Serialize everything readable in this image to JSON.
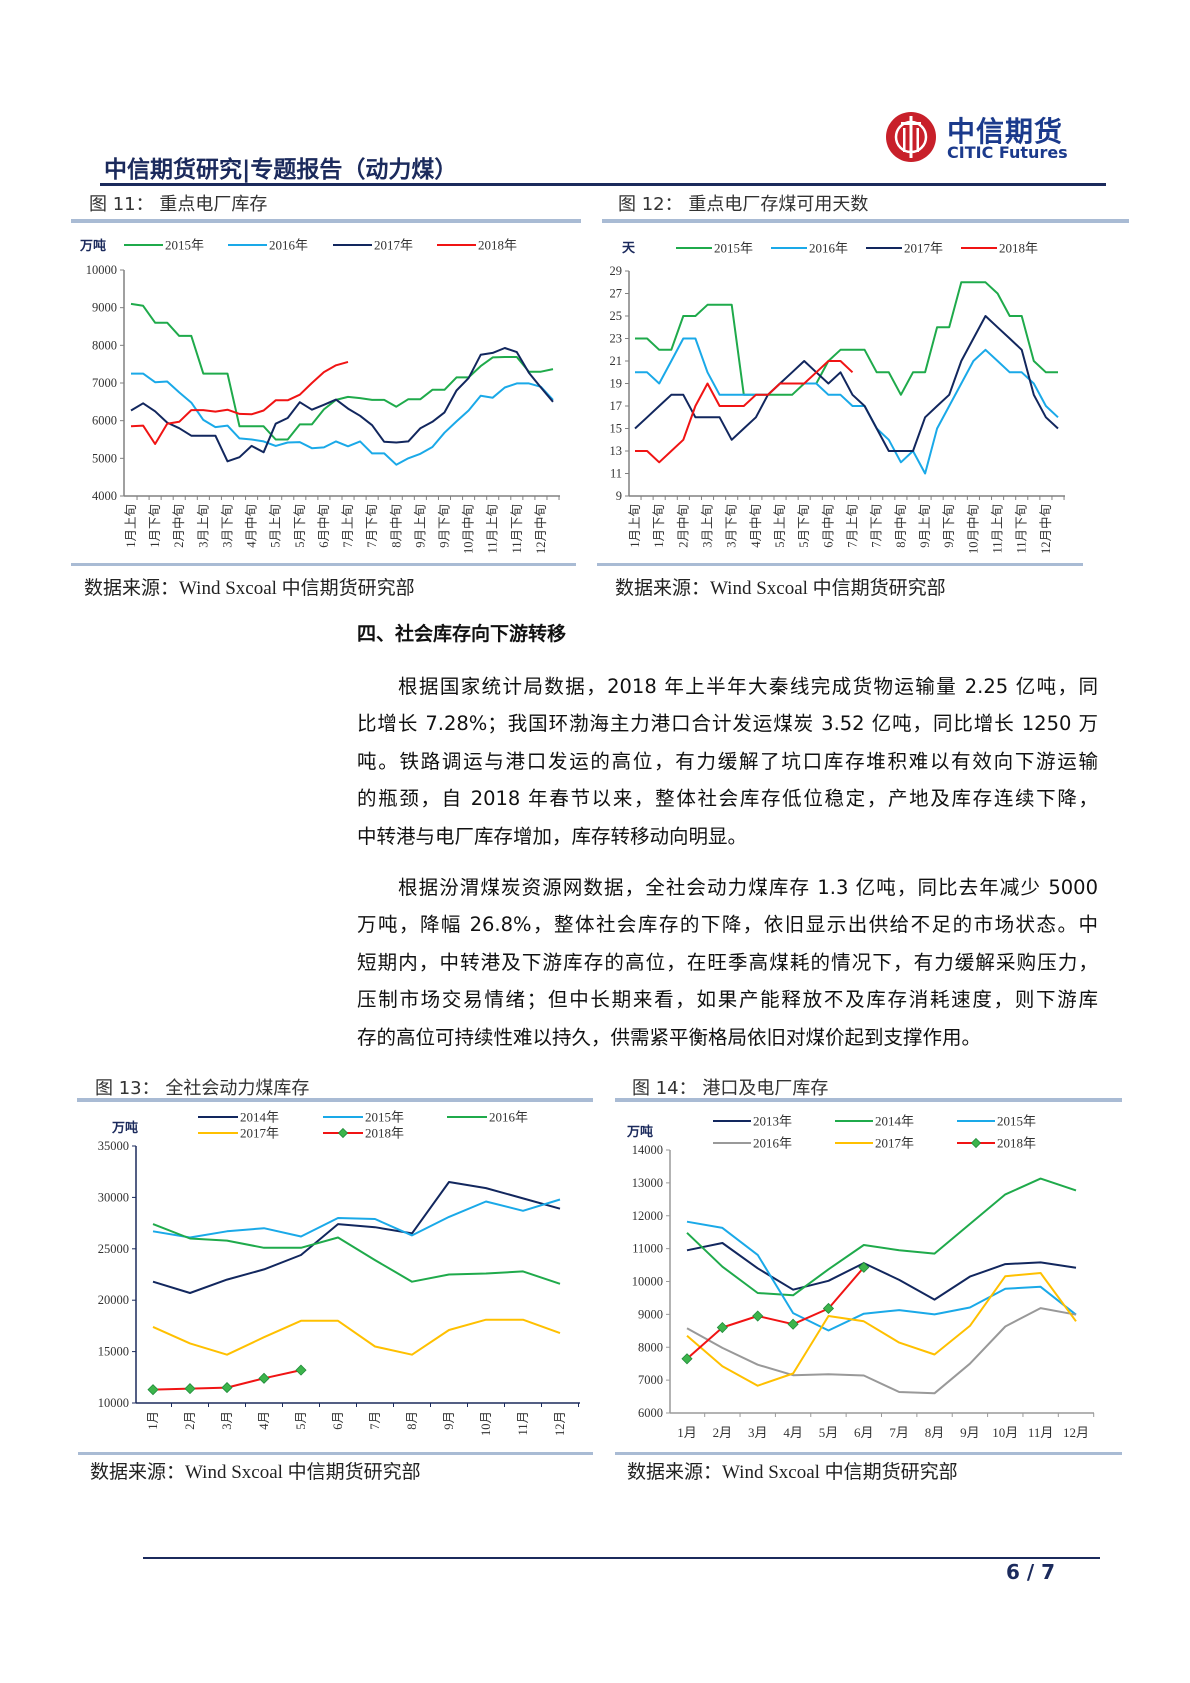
{
  "header": {
    "report_title": "中信期货研究|专题报告（动力煤）",
    "logo_cn": "中信期货",
    "logo_en": "CITIC Futures",
    "logo_color": "#c8202a"
  },
  "figures": [
    {
      "caption": "图 11：   重点电厂库存",
      "source": "数据来源：Wind Sxcoal 中信期货研究部"
    },
    {
      "caption": "图 12：  重点电厂存煤可用天数",
      "source": "数据来源：Wind Sxcoal 中信期货研究部"
    },
    {
      "caption": "图 13：    全社会动力煤库存",
      "source": "数据来源：Wind Sxcoal 中信期货研究部"
    },
    {
      "caption": "图 14：  港口及电厂库存",
      "source": "数据来源：Wind Sxcoal 中信期货研究部"
    }
  ],
  "section": {
    "heading": "四、社会库存向下游转移",
    "paragraphs": [
      [
        "根据国家统计局数据，2018 年上半年大秦线完成货物运输量 2.25 亿吨，同",
        "比增长 7.28%；我国环渤海主力港口合计发运煤炭 3.52 亿吨，同比增长 1250 万",
        "吨。铁路调运与港口发运的高位，有力缓解了坑口库存堆积难以有效向下游运输",
        "的瓶颈，自 2018 年春节以来，整体社会库存低位稳定，产地及库存连续下降，",
        "中转港与电厂库存增加，库存转移动向明显。"
      ],
      [
        "根据汾渭煤炭资源网数据，全社会动力煤库存 1.3 亿吨，同比去年减少 5000",
        "万吨，降幅 26.8%，整体社会库存的下降，依旧显示出供给不足的市场状态。中",
        "短期内，中转港及下游库存的高位，在旺季高煤耗的情况下，有力缓解采购压力，",
        "压制市场交易情绪；但中长期来看，如果产能释放不及库存消耗速度，则下游库",
        "存的高位可持续性难以持久，供需紧平衡格局依旧对煤价起到支撑作用。"
      ]
    ]
  },
  "footer": {
    "page": "6 / 7"
  },
  "chart_data": [
    {
      "type": "line",
      "ylabel": "万吨",
      "ylim": [
        4000,
        10000
      ],
      "yticks": [
        "4000",
        "5000",
        "6000",
        "7000",
        "8000",
        "9000",
        "10000"
      ],
      "x_tick_labels": [
        "1月上旬",
        "1月下旬",
        "2月中旬",
        "3月上旬",
        "3月下旬",
        "4月中旬",
        "5月上旬",
        "5月下旬",
        "6月中旬",
        "7月上旬",
        "7月下旬",
        "8月中旬",
        "9月上旬",
        "9月下旬",
        "10月中旬",
        "11月上旬",
        "11月下旬",
        "12月中旬"
      ],
      "legend": "top",
      "series": [
        {
          "name": "2015年",
          "color": "#1faa4b",
          "values": [
            9100,
            9050,
            8600,
            8600,
            8250,
            8250,
            7250,
            7250,
            7250,
            5850,
            5850,
            5850,
            5500,
            5500,
            5900,
            5900,
            6300,
            6550,
            6630,
            6600,
            6550,
            6550,
            6370,
            6570,
            6570,
            6820,
            6820,
            7150,
            7150,
            7450,
            7680,
            7690,
            7690,
            7300,
            7300,
            7370
          ]
        },
        {
          "name": "2016年",
          "color": "#1aa9e8",
          "values": [
            7250,
            7250,
            7020,
            7040,
            6750,
            6480,
            6020,
            5830,
            5870,
            5530,
            5500,
            5450,
            5330,
            5420,
            5430,
            5270,
            5290,
            5450,
            5320,
            5450,
            5130,
            5130,
            4830,
            5000,
            5120,
            5300,
            5680,
            5980,
            6270,
            6660,
            6610,
            6880,
            6990,
            6990,
            6900,
            6550
          ]
        },
        {
          "name": "2017年",
          "color": "#12275e",
          "values": [
            6270,
            6460,
            6250,
            5950,
            5800,
            5600,
            5600,
            5600,
            4920,
            5030,
            5330,
            5160,
            5920,
            6070,
            6490,
            6290,
            6420,
            6560,
            6320,
            6130,
            5880,
            5440,
            5420,
            5450,
            5800,
            5970,
            6220,
            6800,
            7130,
            7750,
            7800,
            7930,
            7820,
            7270,
            6880,
            6500
          ]
        },
        {
          "name": "2018年",
          "color": "#f01414",
          "values": [
            5850,
            5870,
            5380,
            5920,
            5970,
            6280,
            6280,
            6240,
            6290,
            6180,
            6170,
            6270,
            6540,
            6540,
            6690,
            7000,
            7290,
            7470,
            7560
          ]
        }
      ]
    },
    {
      "type": "line",
      "ylabel": "天",
      "ylim": [
        9,
        29
      ],
      "yticks": [
        "9",
        "11",
        "13",
        "15",
        "17",
        "19",
        "21",
        "23",
        "25",
        "27",
        "29"
      ],
      "x_tick_labels": [
        "1月上旬",
        "1月下旬",
        "2月中旬",
        "3月上旬",
        "3月下旬",
        "4月中旬",
        "5月上旬",
        "5月下旬",
        "6月中旬",
        "7月上旬",
        "7月下旬",
        "8月中旬",
        "9月上旬",
        "9月下旬",
        "10月中旬",
        "11月上旬",
        "11月下旬",
        "12月中旬"
      ],
      "legend": "top",
      "series": [
        {
          "name": "2015年",
          "color": "#1faa4b",
          "values": [
            23,
            23,
            22,
            22,
            25,
            25,
            26,
            26,
            26,
            18,
            18,
            18,
            18,
            18,
            19,
            19,
            21,
            22,
            22,
            22,
            20,
            20,
            18,
            20,
            20,
            24,
            24,
            28,
            28,
            28,
            27,
            25,
            25,
            21,
            20,
            20
          ]
        },
        {
          "name": "2016年",
          "color": "#1aa9e8",
          "values": [
            20,
            20,
            19,
            21,
            23,
            23,
            20,
            18,
            18,
            18,
            18,
            18,
            19,
            19,
            19,
            19,
            18,
            18,
            17,
            17,
            15,
            14,
            12,
            13,
            11,
            15,
            17,
            19,
            21,
            22,
            21,
            20,
            20,
            19,
            17,
            16
          ]
        },
        {
          "name": "2017年",
          "color": "#12275e",
          "values": [
            15,
            16,
            17,
            18,
            18,
            16,
            16,
            16,
            14,
            15,
            16,
            18,
            19,
            20,
            21,
            20,
            19,
            20,
            18,
            17,
            15,
            13,
            13,
            13,
            16,
            17,
            18,
            21,
            23,
            25,
            24,
            23,
            22,
            18,
            16,
            15
          ]
        },
        {
          "name": "2018年",
          "color": "#f01414",
          "values": [
            13,
            13,
            12,
            13,
            14,
            17,
            19,
            17,
            17,
            17,
            18,
            18,
            19,
            19,
            19,
            20,
            21,
            21,
            20
          ]
        }
      ]
    },
    {
      "type": "line",
      "ylabel": "万吨",
      "ylim": [
        10000,
        35000
      ],
      "yticks": [
        "10000",
        "15000",
        "20000",
        "25000",
        "30000",
        "35000"
      ],
      "x_tick_labels": [
        "1月",
        "2月",
        "3月",
        "4月",
        "5月",
        "6月",
        "7月",
        "8月",
        "9月",
        "10月",
        "11月",
        "12月"
      ],
      "legend": "top",
      "series": [
        {
          "name": "2014年",
          "color": "#12275e",
          "values": [
            21800,
            20700,
            22000,
            23000,
            24400,
            27400,
            27100,
            26500,
            31500,
            30900,
            29900,
            28900
          ]
        },
        {
          "name": "2015年",
          "color": "#1aa9e8",
          "values": [
            26700,
            26100,
            26700,
            27000,
            26200,
            28000,
            27900,
            26300,
            28100,
            29600,
            28700,
            29800
          ]
        },
        {
          "name": "2016年",
          "color": "#1faa4b",
          "values": [
            27400,
            26000,
            25800,
            25100,
            25100,
            26100,
            23900,
            21800,
            22500,
            22600,
            22800,
            21600
          ]
        },
        {
          "name": "2017年",
          "color": "#ffc000",
          "values": [
            17400,
            15800,
            14700,
            16400,
            18000,
            18000,
            15500,
            14700,
            17100,
            18100,
            18100,
            16800
          ]
        },
        {
          "name": "2018年",
          "color": "#f01414",
          "marker": "diamond",
          "marker_color": "#3cb44b",
          "values": [
            11300,
            11400,
            11500,
            12400,
            13200
          ]
        }
      ]
    },
    {
      "type": "line",
      "ylabel": "万吨",
      "ylim": [
        6000,
        14000
      ],
      "yticks": [
        "6000",
        "7000",
        "8000",
        "9000",
        "10000",
        "11000",
        "12000",
        "13000",
        "14000"
      ],
      "x_tick_labels": [
        "1月",
        "2月",
        "3月",
        "4月",
        "5月",
        "6月",
        "7月",
        "8月",
        "9月",
        "10月",
        "11月",
        "12月"
      ],
      "legend": "top",
      "series": [
        {
          "name": "2013年",
          "color": "#12275e",
          "values": [
            10950,
            11170,
            10400,
            9750,
            10020,
            10560,
            10050,
            9450,
            10150,
            10530,
            10580,
            10420
          ]
        },
        {
          "name": "2014年",
          "color": "#1faa4b",
          "values": [
            11480,
            10450,
            9650,
            9580,
            10370,
            11110,
            10950,
            10850,
            11750,
            12650,
            13130,
            12770
          ]
        },
        {
          "name": "2015年",
          "color": "#1aa9e8",
          "values": [
            11820,
            11630,
            10810,
            9040,
            8510,
            9020,
            9130,
            9000,
            9210,
            9780,
            9840,
            8990
          ]
        },
        {
          "name": "2016年",
          "color": "#999999",
          "values": [
            8580,
            7980,
            7470,
            7150,
            7180,
            7140,
            6640,
            6600,
            7500,
            8630,
            9190,
            8990
          ]
        },
        {
          "name": "2017年",
          "color": "#ffc000",
          "values": [
            8350,
            7420,
            6830,
            7200,
            8950,
            8790,
            8140,
            7780,
            8650,
            10160,
            10260,
            8790
          ]
        },
        {
          "name": "2018年",
          "color": "#f01414",
          "marker": "diamond",
          "marker_color": "#3cb44b",
          "values": [
            7650,
            8600,
            8950,
            8700,
            9180,
            10430
          ]
        }
      ]
    }
  ]
}
